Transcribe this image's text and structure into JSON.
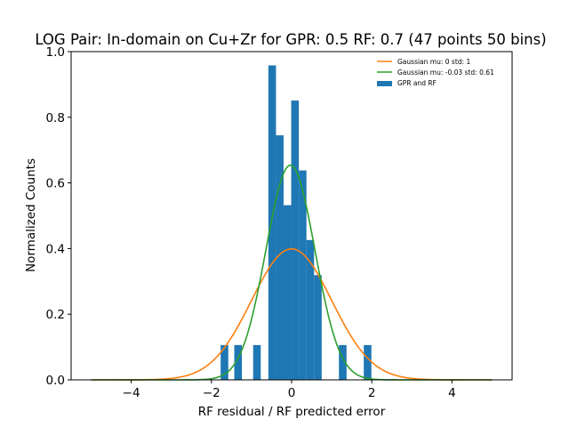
{
  "chart_data": {
    "type": "bar",
    "title": "LOG Pair: In-domain on Cu+Zr for GPR: 0.5 RF: 0.7 (47 points 50 bins)",
    "xlabel": "RF residual / RF predicted error",
    "ylabel": "Normalized Counts",
    "xlim": [
      -5.5,
      5.5
    ],
    "ylim": [
      0,
      1.0
    ],
    "xticks": [
      -4,
      -2,
      0,
      2,
      4
    ],
    "xtick_labels": [
      "−4",
      "−2",
      "0",
      "2",
      "4"
    ],
    "yticks": [
      0.0,
      0.2,
      0.4,
      0.6,
      0.8,
      1.0
    ],
    "ytick_labels": [
      "0.0",
      "0.2",
      "0.4",
      "0.6",
      "0.8",
      "1.0"
    ],
    "grid": false,
    "legend_position": "top-right",
    "bin_width": 0.19,
    "histogram": {
      "name": "GPR and RF",
      "color": "#1f77b4",
      "bins_left": [
        -1.77,
        -1.43,
        -0.96,
        -0.58,
        -0.39,
        -0.2,
        -0.01,
        0.18,
        0.37,
        0.56,
        1.18,
        1.8
      ],
      "heights": [
        0.106,
        0.106,
        0.106,
        0.958,
        0.745,
        0.532,
        0.851,
        0.638,
        0.426,
        0.319,
        0.106,
        0.106
      ]
    },
    "series": [
      {
        "name": "Gaussian mu: 0 std: 1",
        "color": "#ff7f0e",
        "type": "line",
        "mu": 0,
        "std": 1,
        "x_range": [
          -5,
          5
        ]
      },
      {
        "name": "Gaussian mu: -0.03 std: 0.61",
        "color": "#2ca02c",
        "type": "line",
        "mu": -0.03,
        "std": 0.61,
        "x_range": [
          -5,
          5
        ]
      }
    ]
  }
}
